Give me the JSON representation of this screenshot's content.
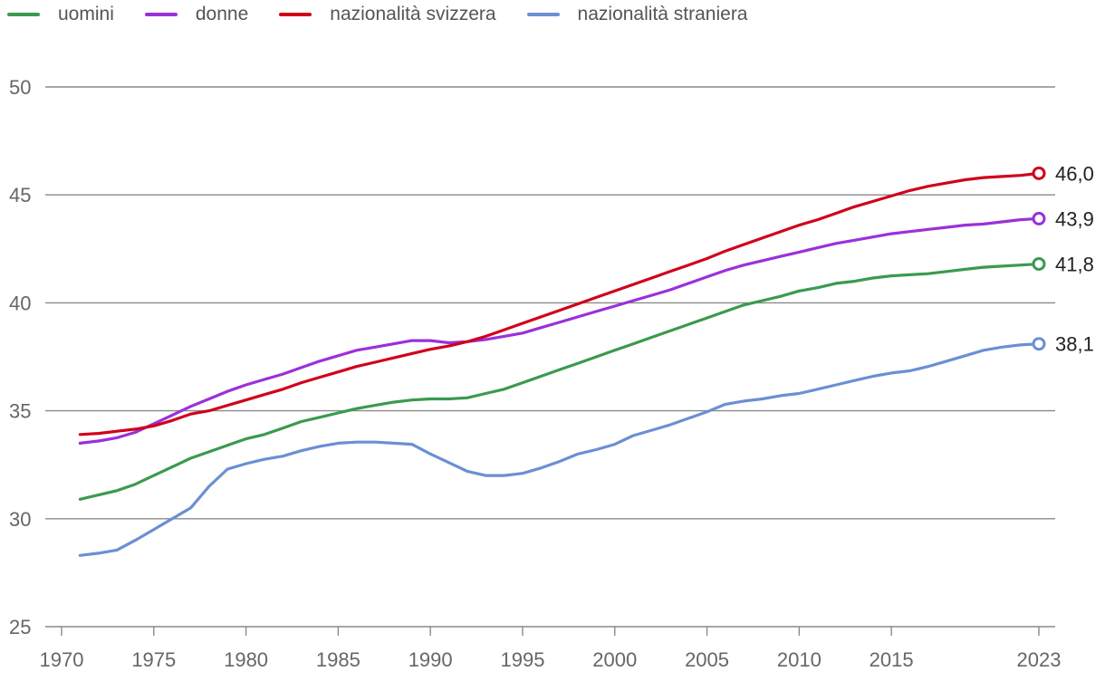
{
  "chart_data": {
    "type": "line",
    "title": "",
    "xlabel": "",
    "ylabel": "",
    "xlim": [
      1970,
      2023
    ],
    "ylim": [
      25,
      50
    ],
    "grid": true,
    "legend_position": "top-left",
    "x_ticks": [
      1970,
      1975,
      1980,
      1985,
      1990,
      1995,
      2000,
      2005,
      2010,
      2015,
      2023
    ],
    "y_ticks": [
      25,
      30,
      35,
      40,
      45,
      50
    ],
    "x": [
      1971,
      1972,
      1973,
      1974,
      1975,
      1976,
      1977,
      1978,
      1979,
      1980,
      1981,
      1982,
      1983,
      1984,
      1985,
      1986,
      1987,
      1988,
      1989,
      1990,
      1991,
      1992,
      1993,
      1994,
      1995,
      1996,
      1997,
      1998,
      1999,
      2000,
      2001,
      2002,
      2003,
      2004,
      2005,
      2006,
      2007,
      2008,
      2009,
      2010,
      2011,
      2012,
      2013,
      2014,
      2015,
      2016,
      2017,
      2018,
      2019,
      2020,
      2021,
      2022,
      2023
    ],
    "series": [
      {
        "name": "uomini",
        "color": "#3a9a4f",
        "values": [
          30.9,
          31.1,
          31.3,
          31.6,
          32.0,
          32.4,
          32.8,
          33.1,
          33.4,
          33.7,
          33.9,
          34.2,
          34.5,
          34.7,
          34.9,
          35.1,
          35.25,
          35.4,
          35.5,
          35.55,
          35.55,
          35.6,
          35.8,
          36.0,
          36.3,
          36.6,
          36.9,
          37.2,
          37.5,
          37.8,
          38.1,
          38.4,
          38.7,
          39.0,
          39.3,
          39.6,
          39.9,
          40.1,
          40.3,
          40.55,
          40.7,
          40.9,
          41.0,
          41.15,
          41.25,
          41.3,
          41.35,
          41.45,
          41.55,
          41.65,
          41.7,
          41.75,
          41.8
        ]
      },
      {
        "name": "donne",
        "color": "#9b30d9",
        "values": [
          33.5,
          33.6,
          33.75,
          34.0,
          34.4,
          34.8,
          35.2,
          35.55,
          35.9,
          36.2,
          36.45,
          36.7,
          37.0,
          37.3,
          37.55,
          37.8,
          37.95,
          38.1,
          38.25,
          38.25,
          38.15,
          38.2,
          38.3,
          38.45,
          38.6,
          38.85,
          39.1,
          39.35,
          39.6,
          39.85,
          40.1,
          40.35,
          40.6,
          40.9,
          41.2,
          41.5,
          41.75,
          41.95,
          42.15,
          42.35,
          42.55,
          42.75,
          42.9,
          43.05,
          43.2,
          43.3,
          43.4,
          43.5,
          43.6,
          43.65,
          43.75,
          43.85,
          43.9
        ]
      },
      {
        "name": "nazionalità svizzera",
        "color": "#d0021b",
        "values": [
          33.9,
          33.95,
          34.05,
          34.15,
          34.3,
          34.55,
          34.85,
          35.0,
          35.25,
          35.5,
          35.75,
          36.0,
          36.3,
          36.55,
          36.8,
          37.05,
          37.25,
          37.45,
          37.65,
          37.85,
          38.0,
          38.2,
          38.45,
          38.75,
          39.05,
          39.35,
          39.65,
          39.95,
          40.25,
          40.55,
          40.85,
          41.15,
          41.45,
          41.75,
          42.05,
          42.4,
          42.7,
          43.0,
          43.3,
          43.6,
          43.85,
          44.15,
          44.45,
          44.7,
          44.95,
          45.2,
          45.4,
          45.55,
          45.7,
          45.8,
          45.85,
          45.9,
          46.0
        ]
      },
      {
        "name": "nazionalità straniera",
        "color": "#6b8fd4",
        "values": [
          28.3,
          28.4,
          28.55,
          29.0,
          29.5,
          30.0,
          30.5,
          31.5,
          32.3,
          32.55,
          32.75,
          32.9,
          33.15,
          33.35,
          33.5,
          33.55,
          33.55,
          33.5,
          33.45,
          33.0,
          32.6,
          32.2,
          32.0,
          32.0,
          32.1,
          32.35,
          32.65,
          33.0,
          33.2,
          33.45,
          33.85,
          34.1,
          34.35,
          34.65,
          34.95,
          35.3,
          35.45,
          35.55,
          35.7,
          35.8,
          36.0,
          36.2,
          36.4,
          36.6,
          36.75,
          36.85,
          37.05,
          37.3,
          37.55,
          37.8,
          37.95,
          38.05,
          38.1
        ]
      }
    ],
    "end_labels": [
      "46,0",
      "43,9",
      "41,8",
      "38,1"
    ],
    "end_label_series_order": [
      2,
      1,
      0,
      3
    ]
  }
}
